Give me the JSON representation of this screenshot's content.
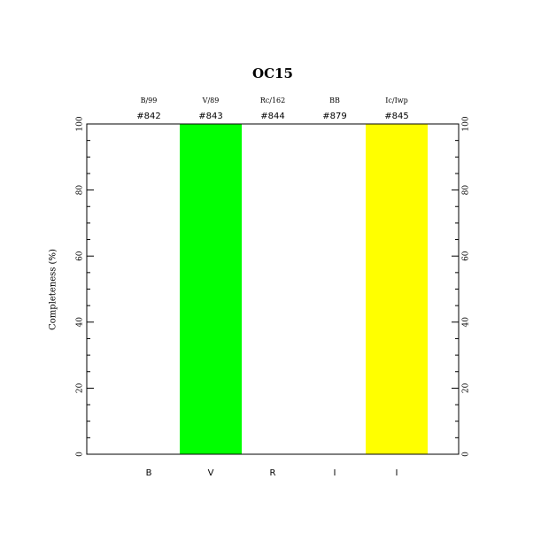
{
  "chart_data": {
    "type": "bar",
    "title": "OC15",
    "y_label": "Completeness (%)",
    "categories": [
      "B",
      "V",
      "R",
      "I",
      "I"
    ],
    "filters": [
      "B/99",
      "V/89",
      "Rc/162",
      "BB",
      "Ic/Iwp"
    ],
    "ids": [
      "#842",
      "#843",
      "#844",
      "#879",
      "#845"
    ],
    "values": [
      0,
      100,
      0,
      0,
      100
    ],
    "colors": [
      null,
      "#00ff00",
      null,
      null,
      "#ffff00"
    ],
    "ylim": [
      0,
      100
    ],
    "yticks": [
      0,
      20,
      40,
      60,
      80,
      100
    ],
    "y_minor_ticks": [
      5,
      10,
      15,
      25,
      30,
      35,
      45,
      50,
      55,
      65,
      70,
      75,
      85,
      90,
      95
    ]
  }
}
